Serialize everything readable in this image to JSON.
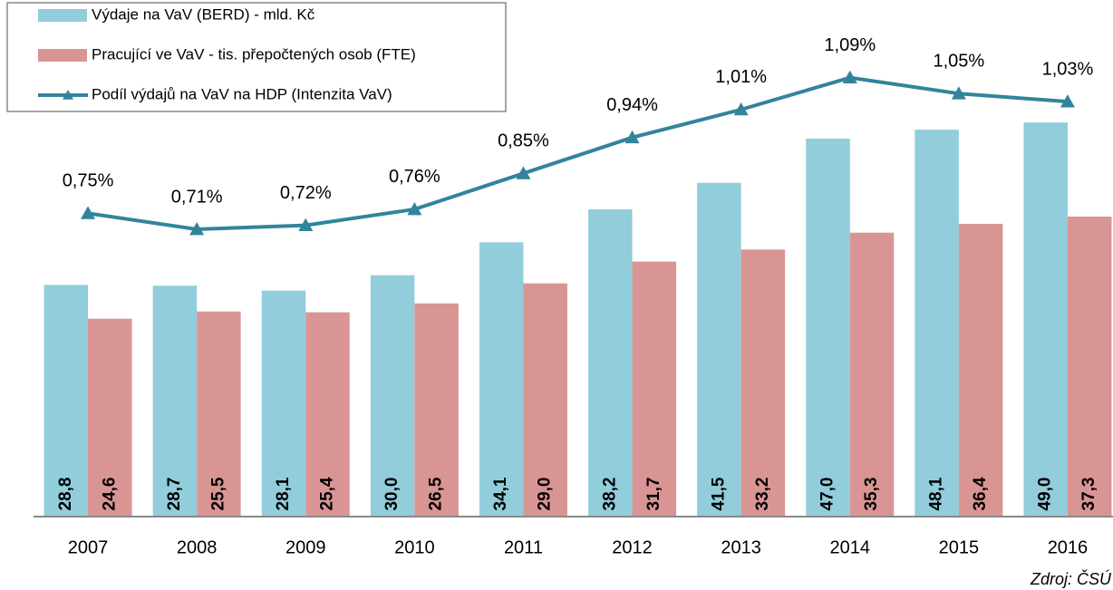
{
  "chart_data": {
    "type": "bar",
    "categories": [
      "2007",
      "2008",
      "2009",
      "2010",
      "2011",
      "2012",
      "2013",
      "2014",
      "2015",
      "2016"
    ],
    "series": [
      {
        "name": "Výdaje na VaV (BERD) - mld. Kč",
        "color": "#92cddc",
        "type": "bar",
        "values": [
          28.8,
          28.7,
          28.1,
          30.0,
          34.1,
          38.2,
          41.5,
          47.0,
          48.1,
          49.0
        ],
        "value_labels": [
          "28,8",
          "28,7",
          "28,1",
          "30,0",
          "34,1",
          "38,2",
          "41,5",
          "47,0",
          "48,1",
          "49,0"
        ]
      },
      {
        "name": "Pracující ve VaV - tis. přepočtených osob (FTE)",
        "color": "#d99594",
        "type": "bar",
        "values": [
          24.6,
          25.5,
          25.4,
          26.5,
          29.0,
          31.7,
          33.2,
          35.3,
          36.4,
          37.3
        ],
        "value_labels": [
          "24,6",
          "25,5",
          "25,4",
          "26,5",
          "29,0",
          "31,7",
          "33,2",
          "35,3",
          "36,4",
          "37,3"
        ]
      },
      {
        "name": "Podíl výdajů na VaV na HDP (Intenzita VaV)",
        "color": "#31849b",
        "type": "line",
        "axis": "y2",
        "values": [
          0.75,
          0.71,
          0.72,
          0.76,
          0.85,
          0.94,
          1.01,
          1.09,
          1.05,
          1.03
        ],
        "value_labels": [
          "0,75%",
          "0,71%",
          "0,72%",
          "0,76%",
          "0,85%",
          "0,94%",
          "1,01%",
          "1,09%",
          "1,05%",
          "1,03%"
        ]
      }
    ],
    "ylim": [
      0,
      64
    ],
    "y2lim": [
      -0.01,
      1.28
    ],
    "source": "Zdroj: ČSÚ"
  }
}
